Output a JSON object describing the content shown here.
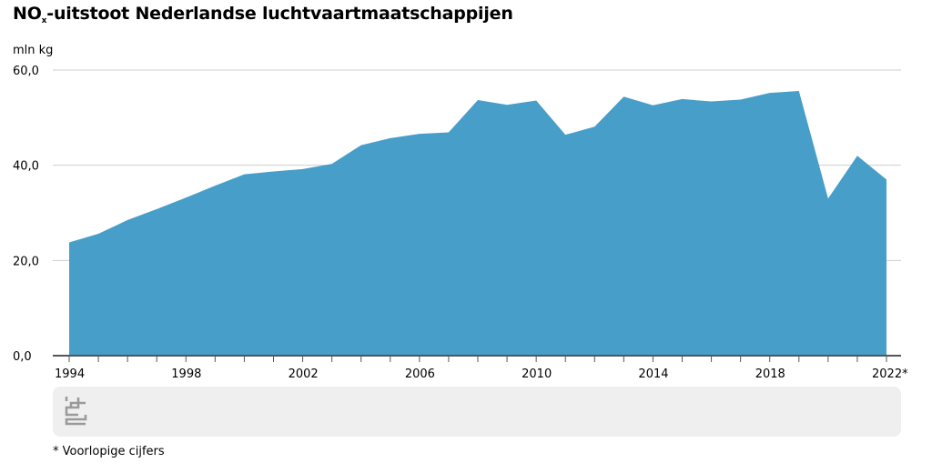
{
  "chart_data": {
    "type": "area",
    "title": {
      "main": "NO",
      "subscript": "x",
      "rest": "-uitstoot Nederlandse luchtvaartmaatschappijen"
    },
    "ylabel": "mln kg",
    "xlabel": "",
    "ylim": [
      0,
      60
    ],
    "yticks": [
      "0,0",
      "20,0",
      "40,0",
      "60,0"
    ],
    "xticks": [
      "1994",
      "1998",
      "2002",
      "2006",
      "2010",
      "2014",
      "2018",
      "2022*"
    ],
    "grid": true,
    "color": "#479ec9",
    "x": [
      1994,
      1995,
      1996,
      1997,
      1998,
      1999,
      2000,
      2001,
      2002,
      2003,
      2004,
      2005,
      2006,
      2007,
      2008,
      2009,
      2010,
      2011,
      2012,
      2013,
      2014,
      2015,
      2016,
      2017,
      2018,
      2019,
      2020,
      2021,
      2022
    ],
    "values": [
      23.8,
      25.6,
      28.5,
      30.8,
      33.2,
      35.7,
      38.1,
      38.7,
      39.2,
      40.3,
      44.2,
      45.7,
      46.6,
      46.9,
      53.7,
      52.7,
      53.6,
      46.4,
      48.1,
      54.4,
      52.6,
      53.9,
      53.4,
      53.8,
      55.2,
      55.6,
      33.0,
      42.0,
      37.0
    ],
    "footnote": "* Voorlopige cijfers",
    "logo": "cbs"
  }
}
